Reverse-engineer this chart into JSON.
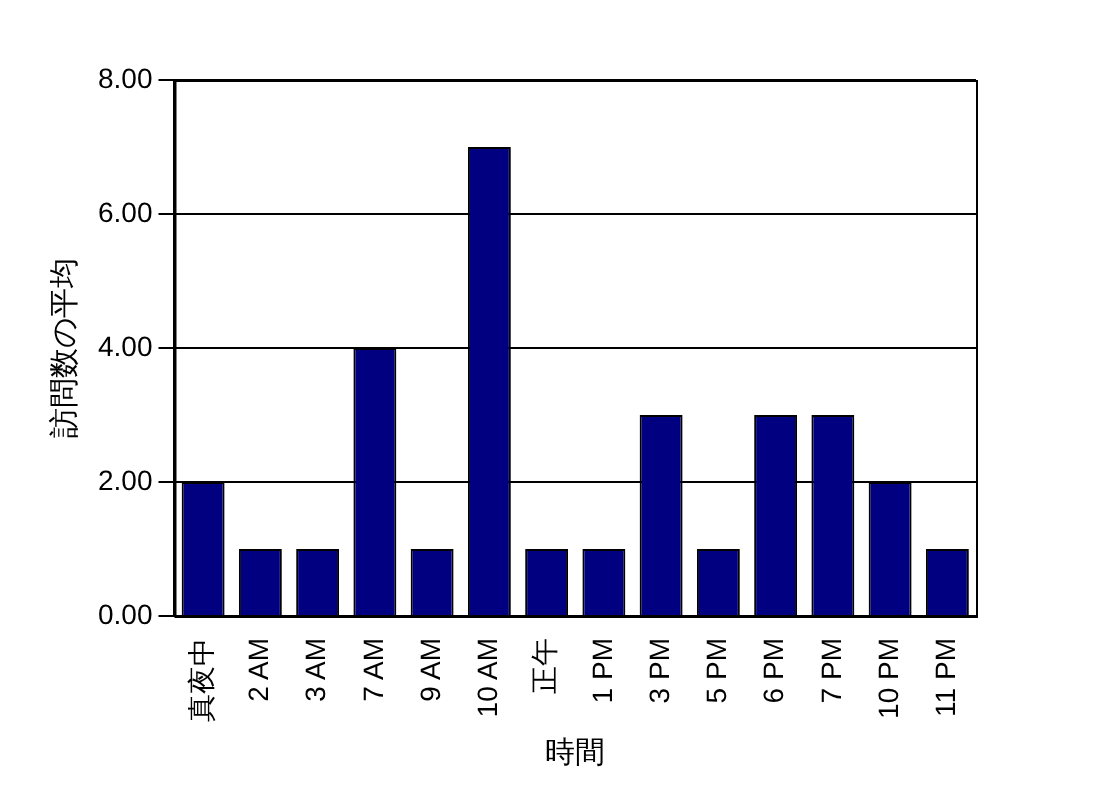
{
  "chart_data": {
    "type": "bar",
    "xlabel": "時間",
    "ylabel": "訪問数の平均",
    "categories": [
      "真夜中",
      "2 AM",
      "3 AM",
      "7 AM",
      "9 AM",
      "10 AM",
      "正午",
      "1 PM",
      "3 PM",
      "5 PM",
      "6 PM",
      "7 PM",
      "10 PM",
      "11 PM"
    ],
    "values": [
      2,
      1,
      1,
      4,
      1,
      7,
      1,
      1,
      3,
      1,
      3,
      3,
      2,
      1
    ],
    "color": "#000080",
    "ylim": [
      0,
      8
    ],
    "yticks": [
      {
        "value": 0,
        "label": "0.00"
      },
      {
        "value": 2,
        "label": "2.00"
      },
      {
        "value": 4,
        "label": "4.00"
      },
      {
        "value": 6,
        "label": "6.00"
      },
      {
        "value": 8,
        "label": "8.00"
      }
    ],
    "grid": "y",
    "legend": false
  }
}
